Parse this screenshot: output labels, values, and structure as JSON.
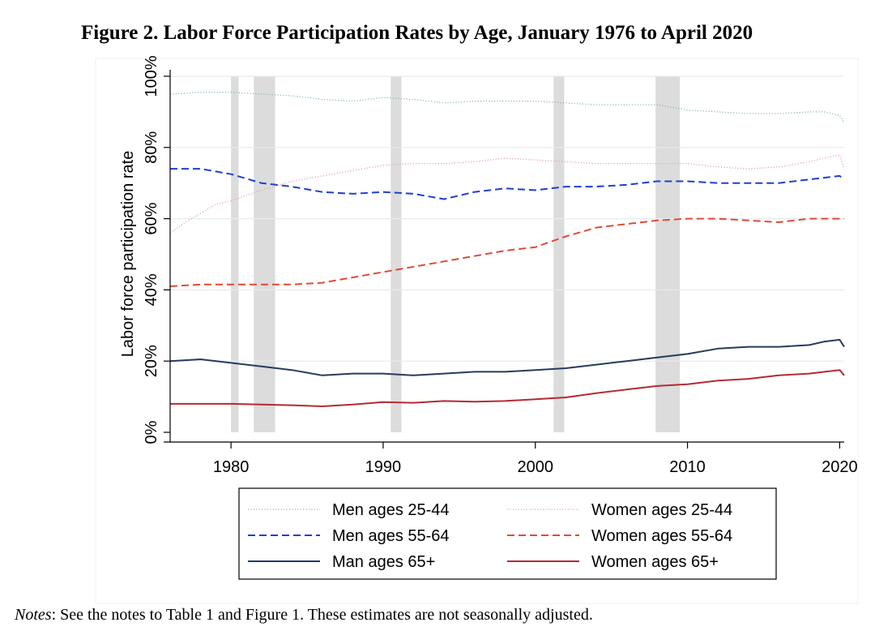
{
  "figure": {
    "title": "Figure 2. Labor Force Participation Rates by Age, January 1976 to April 2020",
    "notes_label": "Notes",
    "notes_text": ": See the notes to Table 1 and Figure 1. These estimates are not seasonally adjusted."
  },
  "chart_data": {
    "type": "line",
    "title": "",
    "xlabel": "",
    "ylabel": "Labor force participation rate",
    "xlim": [
      1976,
      2020.3
    ],
    "ylim": [
      0,
      100
    ],
    "x_ticks": [
      1980,
      1990,
      2000,
      2010,
      2020
    ],
    "x_tick_labels": [
      "1980",
      "1990",
      "2000",
      "2010",
      "2020"
    ],
    "y_ticks": [
      0,
      20,
      40,
      60,
      80,
      100
    ],
    "y_tick_labels": [
      "0%",
      "20%",
      "40%",
      "60%",
      "80%",
      "100%"
    ],
    "grid": true,
    "legend_position": "bottom",
    "recessions": [
      [
        1980.0,
        1980.5
      ],
      [
        1981.5,
        1982.9
      ],
      [
        1990.5,
        1991.2
      ],
      [
        2001.2,
        2001.9
      ],
      [
        2007.9,
        2009.5
      ]
    ],
    "series": [
      {
        "name": "Men ages 25-44",
        "color": "#8fb8ba",
        "style": "dotted",
        "x": [
          1976,
          1978,
          1980,
          1982,
          1984,
          1986,
          1988,
          1990,
          1992,
          1994,
          1996,
          1998,
          2000,
          2002,
          2004,
          2006,
          2008,
          2010,
          2012,
          2014,
          2016,
          2018,
          2019,
          2020,
          2020.3
        ],
        "y": [
          95,
          95.5,
          95.5,
          95,
          94.5,
          93.5,
          93,
          94,
          93.5,
          92.5,
          93,
          93,
          93,
          92.5,
          92,
          92,
          92,
          90.5,
          90,
          89.5,
          89.5,
          90,
          90,
          89,
          87
        ]
      },
      {
        "name": "Women ages 25-44",
        "color": "#e8a4aa",
        "style": "dotted",
        "x": [
          1976,
          1977,
          1978,
          1979,
          1980,
          1982,
          1984,
          1986,
          1988,
          1990,
          1992,
          1994,
          1996,
          1998,
          2000,
          2002,
          2004,
          2006,
          2008,
          2010,
          2012,
          2014,
          2016,
          2018,
          2019,
          2020,
          2020.3
        ],
        "y": [
          56,
          59,
          61.5,
          64,
          65,
          68,
          70.5,
          72,
          73.5,
          75,
          75.5,
          75.5,
          76,
          77,
          76.5,
          76,
          75.5,
          75.5,
          75.5,
          75.5,
          74.5,
          74,
          74.5,
          76,
          77,
          78,
          74
        ]
      },
      {
        "name": "Men ages 55-64",
        "color": "#1f3ed4",
        "style": "dashed",
        "x": [
          1976,
          1978,
          1980,
          1982,
          1984,
          1986,
          1988,
          1990,
          1992,
          1994,
          1996,
          1998,
          2000,
          2002,
          2004,
          2006,
          2008,
          2010,
          2012,
          2014,
          2016,
          2018,
          2020,
          2020.3
        ],
        "y": [
          74,
          74,
          72.5,
          70,
          69,
          67.5,
          67,
          67.5,
          67,
          65.5,
          67.5,
          68.5,
          68,
          69,
          69,
          69.5,
          70.5,
          70.5,
          70,
          70,
          70,
          71,
          72,
          71
        ]
      },
      {
        "name": "Women ages 55-64",
        "color": "#e04a36",
        "style": "dashed",
        "x": [
          1976,
          1978,
          1980,
          1982,
          1984,
          1986,
          1988,
          1990,
          1992,
          1994,
          1996,
          1998,
          2000,
          2002,
          2004,
          2006,
          2008,
          2010,
          2012,
          2014,
          2016,
          2018,
          2020,
          2020.3
        ],
        "y": [
          41,
          41.5,
          41.5,
          41.5,
          41.5,
          42,
          43.5,
          45,
          46.5,
          48,
          49.5,
          51,
          52,
          55,
          57.5,
          58.5,
          59.5,
          60,
          60,
          59.5,
          59,
          60,
          60,
          60
        ]
      },
      {
        "name": "Man ages 65+",
        "color": "#253c5c",
        "style": "solid",
        "x": [
          1976,
          1978,
          1980,
          1982,
          1984,
          1986,
          1988,
          1990,
          1992,
          1994,
          1996,
          1998,
          2000,
          2002,
          2004,
          2006,
          2008,
          2010,
          2012,
          2014,
          2016,
          2018,
          2019,
          2020,
          2020.3
        ],
        "y": [
          20,
          20.5,
          19.5,
          18.5,
          17.5,
          16,
          16.5,
          16.5,
          16,
          16.5,
          17,
          17,
          17.5,
          18,
          19,
          20,
          21,
          22,
          23.5,
          24,
          24,
          24.5,
          25.5,
          26,
          24
        ]
      },
      {
        "name": "Women ages 65+",
        "color": "#b52a35",
        "style": "solid",
        "x": [
          1976,
          1978,
          1980,
          1982,
          1984,
          1986,
          1988,
          1990,
          1992,
          1994,
          1996,
          1998,
          2000,
          2002,
          2004,
          2006,
          2008,
          2010,
          2012,
          2014,
          2016,
          2018,
          2019,
          2020,
          2020.3
        ],
        "y": [
          8,
          8,
          8,
          7.8,
          7.6,
          7.3,
          7.8,
          8.5,
          8.3,
          8.8,
          8.6,
          8.8,
          9.3,
          9.8,
          11,
          12,
          13,
          13.5,
          14.5,
          15,
          16,
          16.5,
          17,
          17.5,
          16
        ]
      }
    ]
  }
}
